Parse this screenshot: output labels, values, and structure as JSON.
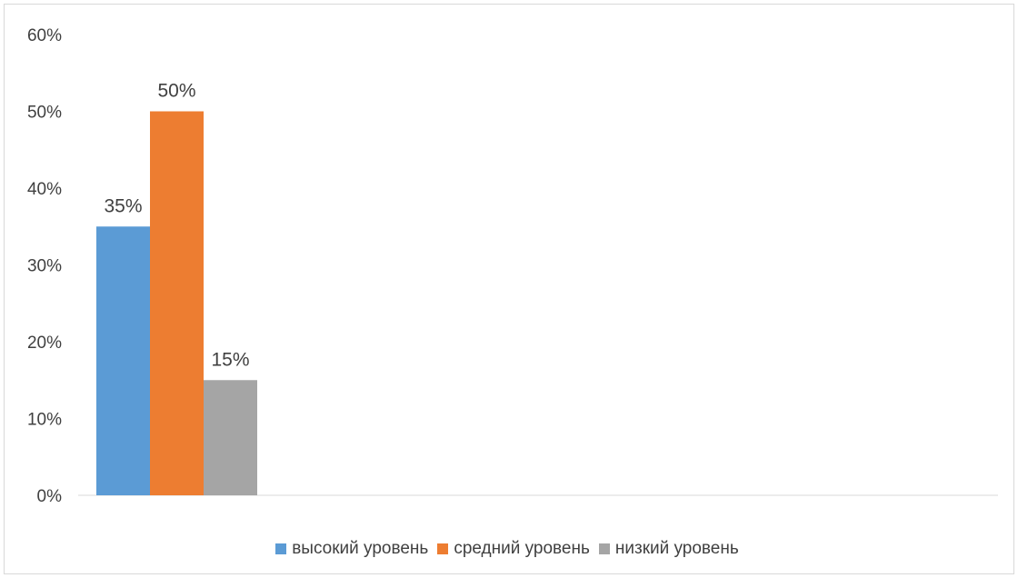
{
  "chart_data": {
    "type": "bar",
    "categories": [
      ""
    ],
    "series": [
      {
        "name": "высокий уровень",
        "values": [
          0.35
        ],
        "color": "#5b9bd5",
        "label": "35%"
      },
      {
        "name": "средний уровень",
        "values": [
          0.5
        ],
        "color": "#ed7d31",
        "label": "50%"
      },
      {
        "name": "низкий уровень",
        "values": [
          0.15
        ],
        "color": "#a5a5a5",
        "label": "15%"
      }
    ],
    "ylim": [
      0,
      0.6
    ],
    "yticks": [
      "0%",
      "10%",
      "20%",
      "30%",
      "40%",
      "50%",
      "60%"
    ],
    "grid": false,
    "legend_position": "bottom",
    "title": "",
    "xlabel": "",
    "ylabel": ""
  }
}
